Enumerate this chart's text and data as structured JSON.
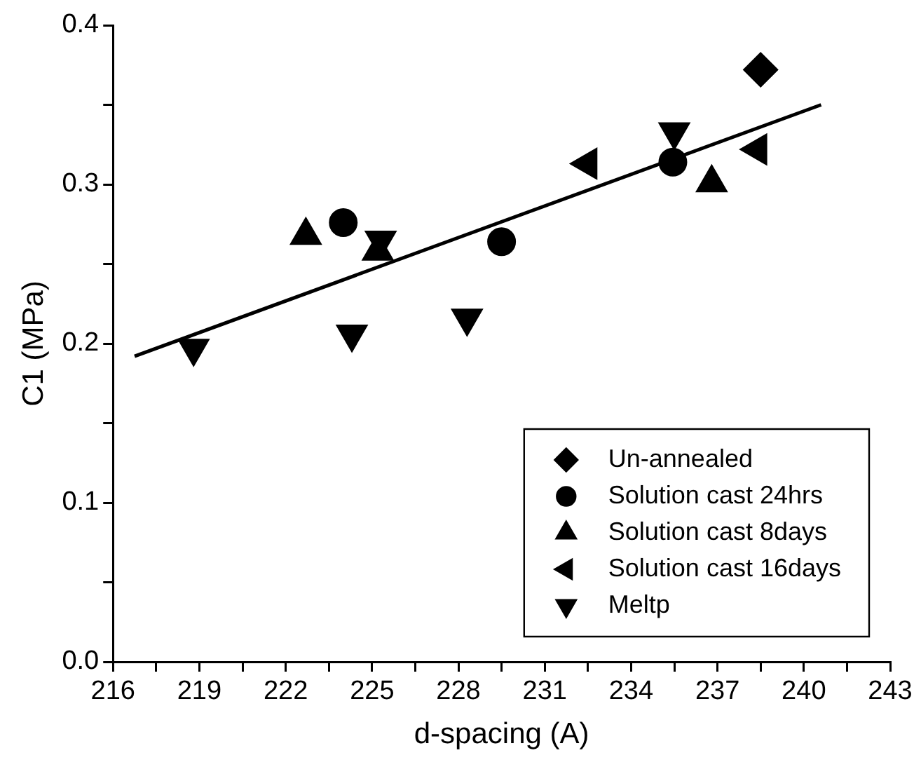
{
  "chart_data": {
    "type": "scatter",
    "xlabel": "d-spacing (A)",
    "ylabel": "C1 (MPa)",
    "xlim": [
      216,
      243
    ],
    "xticks": [
      216,
      {
        "value": 217.5,
        "label": null
      },
      219,
      {
        "value": 220.5,
        "label": null
      },
      222,
      {
        "value": 223.5,
        "label": null
      },
      225,
      {
        "value": 226.5,
        "label": null
      },
      228,
      {
        "value": 229.5,
        "label": null
      },
      231,
      {
        "value": 232.5,
        "label": null
      },
      234,
      {
        "value": 235.5,
        "label": null
      },
      237,
      {
        "value": 238.5,
        "label": null
      },
      240,
      {
        "value": 241.5,
        "label": null
      },
      243
    ],
    "ylim": [
      0,
      0.4
    ],
    "yticks": [
      {
        "value": 0,
        "label": "0.0"
      },
      {
        "value": 0.05,
        "label": null
      },
      0.1,
      {
        "value": 0.15,
        "label": null
      },
      0.2,
      {
        "value": 0.25,
        "label": null
      },
      0.3,
      {
        "value": 0.35,
        "label": null
      },
      0.4
    ],
    "grid": false,
    "legend": "bottom right",
    "series": [
      {
        "name": "Un-annealed",
        "color": "#000000",
        "marker": "diamond",
        "x": [
          238.5
        ],
        "values": [
          0.372
        ]
      },
      {
        "name": "Solution cast 24hrs",
        "color": "#000000",
        "marker": "circle",
        "x": [
          224.0,
          229.5,
          235.45
        ],
        "values": [
          0.276,
          0.264,
          0.314
        ]
      },
      {
        "name": "Solution cast 8days",
        "color": "#000000",
        "marker": "triangle",
        "x": [
          222.7,
          225.2,
          236.8
        ],
        "values": [
          0.268,
          0.258,
          0.301
        ]
      },
      {
        "name": "Solution cast 16days",
        "color": "#000000",
        "marker": "triangle-left",
        "x": [
          232.5,
          238.4
        ],
        "values": [
          0.313,
          0.322
        ]
      },
      {
        "name": "Meltp",
        "color": "#000000",
        "marker": "triangle-down",
        "x": [
          218.8,
          224.3,
          228.3,
          225.3,
          235.5
        ],
        "values": [
          0.197,
          0.206,
          0.216,
          0.265,
          0.333
        ]
      },
      {
        "type": "line",
        "color": "#000000",
        "marker": "none",
        "line_style": "solid",
        "x": [
          216.75,
          240.6
        ],
        "values": [
          0.192,
          0.35
        ]
      }
    ]
  }
}
